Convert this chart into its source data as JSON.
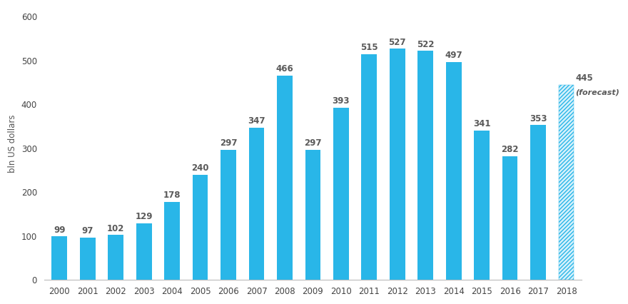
{
  "categories": [
    "2000",
    "2001",
    "2002",
    "2003",
    "2004",
    "2005",
    "2006",
    "2007",
    "2008",
    "2009",
    "2010",
    "2011",
    "2012",
    "2013",
    "2014",
    "2015",
    "2016",
    "2017",
    "2018"
  ],
  "values": [
    99,
    97,
    102,
    129,
    178,
    240,
    297,
    347,
    466,
    297,
    393,
    515,
    527,
    522,
    497,
    341,
    282,
    353,
    445
  ],
  "bar_color": "#29b6e8",
  "forecast_hatch_color": "#29b6e8",
  "forecast_face_color": "#d6f1fb",
  "forecast_index": 18,
  "ylabel": "bln US dollars",
  "ylim": [
    0,
    620
  ],
  "yticks": [
    0,
    100,
    200,
    300,
    400,
    500,
    600
  ],
  "label_color": "#5a5a5a",
  "label_fontsize": 8.5,
  "tick_fontsize": 8.5,
  "bar_width": 0.55
}
